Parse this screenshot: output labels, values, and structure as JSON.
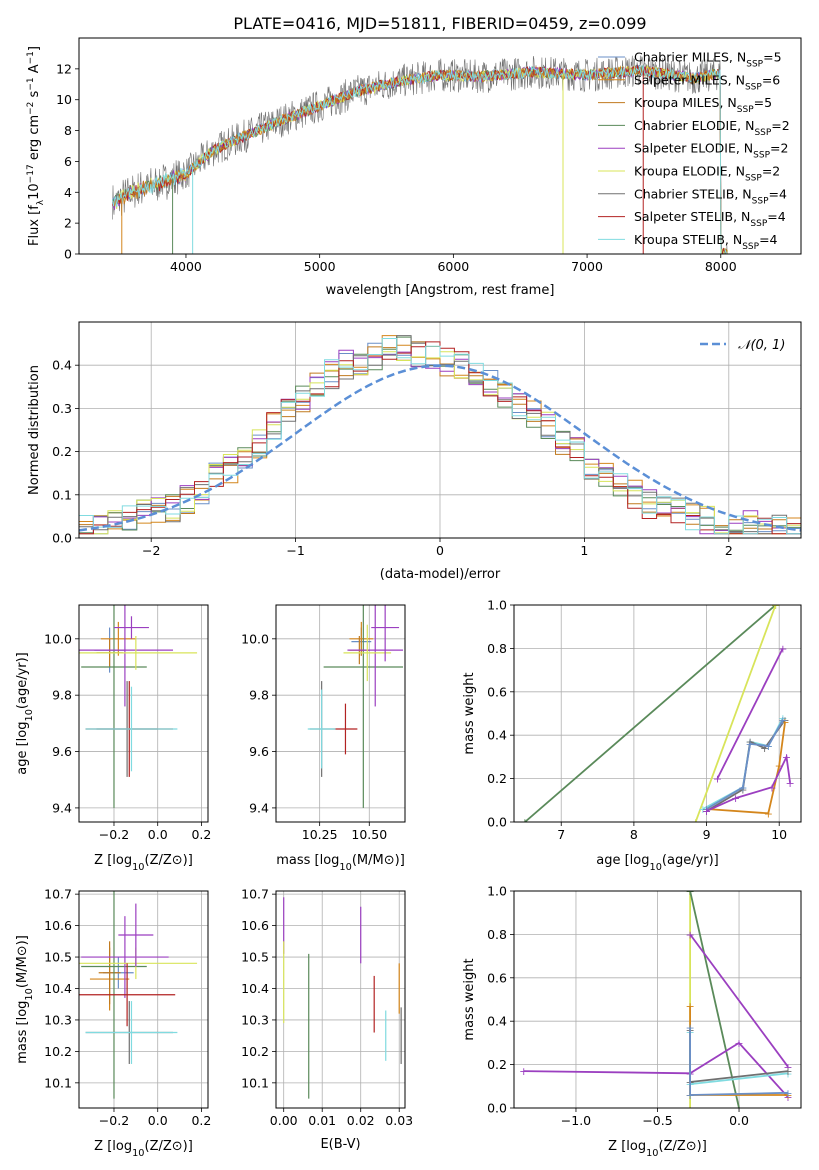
{
  "figure_title": "PLATE=0416, MJD=51811, FIBERID=0459, z=0.099",
  "models": [
    {
      "name": "Chabrier MILES",
      "nssp": "5",
      "color": "#6a8fc7"
    },
    {
      "name": "Salpeter MILES",
      "nssp": "6",
      "color": "#d4861c"
    },
    {
      "name": "Kroupa MILES",
      "nssp": "5",
      "color": "#c17a1f"
    },
    {
      "name": "Chabrier ELODIE",
      "nssp": "2",
      "color": "#5a8a5a"
    },
    {
      "name": "Salpeter ELODIE",
      "nssp": "2",
      "color": "#9b3fc0"
    },
    {
      "name": "Kroupa ELODIE",
      "nssp": "2",
      "color": "#d8e45a"
    },
    {
      "name": "Chabrier STELIB",
      "nssp": "4",
      "color": "#707070"
    },
    {
      "name": "Salpeter STELIB",
      "nssp": "4",
      "color": "#b22222"
    },
    {
      "name": "Kroupa STELIB",
      "nssp": "4",
      "color": "#80dbe0"
    }
  ],
  "nssp_label": "N",
  "nssp_sub": "SSP",
  "chart_data": [
    {
      "id": "spectrum",
      "type": "line",
      "xlabel": "wavelength [Angstrom, rest frame]",
      "ylabel_text": "Flux [f",
      "ylabel_tail": "10",
      "ylabel_rest": " erg cm",
      "xlim": [
        3200,
        8600
      ],
      "ylim": [
        0,
        14
      ],
      "xticks": [
        4000,
        5000,
        6000,
        7000,
        8000
      ],
      "yticks": [
        0,
        2,
        4,
        6,
        8,
        10,
        12
      ],
      "series": [
        {
          "x": [
            3450,
            3600,
            3800,
            4000,
            4200,
            4400,
            4700,
            5000,
            5300,
            5600,
            5900,
            6200,
            6600,
            7000,
            7400,
            7800,
            8000
          ],
          "y": [
            3.3,
            4.0,
            4.6,
            5.2,
            6.7,
            7.5,
            8.6,
            9.6,
            10.6,
            11.2,
            11.6,
            11.5,
            11.8,
            11.6,
            11.9,
            11.4,
            11.7
          ]
        }
      ]
    },
    {
      "id": "residuals",
      "type": "bar",
      "xlabel": "(data-model)/error",
      "ylabel": "Normed distribution",
      "legend": "𝒩(0, 1)",
      "xlim": [
        -2.5,
        2.5
      ],
      "ylim": [
        0,
        0.5
      ],
      "xticks": [
        -2,
        -1,
        0,
        1,
        2
      ],
      "yticks": [
        0.0,
        0.1,
        0.2,
        0.3,
        0.4
      ],
      "bin_width": 0.1,
      "values": [
        0.02,
        0.03,
        0.03,
        0.04,
        0.06,
        0.06,
        0.07,
        0.09,
        0.11,
        0.14,
        0.16,
        0.19,
        0.22,
        0.26,
        0.29,
        0.32,
        0.35,
        0.38,
        0.4,
        0.41,
        0.42,
        0.44,
        0.44,
        0.43,
        0.42,
        0.41,
        0.4,
        0.38,
        0.36,
        0.33,
        0.31,
        0.29,
        0.26,
        0.22,
        0.2,
        0.17,
        0.15,
        0.12,
        0.1,
        0.08,
        0.07,
        0.06,
        0.05,
        0.04,
        0.03,
        0.03,
        0.03,
        0.02,
        0.02,
        0.02
      ]
    },
    {
      "id": "age_vs_Z",
      "type": "scatter",
      "xlabel": "Z [log",
      "ylabel": "age  [log",
      "xlim": [
        -0.36,
        0.23
      ],
      "ylim": [
        9.35,
        10.12
      ],
      "xticks": [
        -0.2,
        0.0,
        0.2
      ],
      "yticks": [
        9.4,
        9.6,
        9.8,
        10.0
      ],
      "points": [
        {
          "x": -0.22,
          "y": 9.96,
          "ex": 0.07,
          "ey": 0.08,
          "model": 0
        },
        {
          "x": -0.18,
          "y": 10.0,
          "ex": 0.08,
          "ey": 0.06,
          "model": 1
        },
        {
          "x": -0.22,
          "y": 9.95,
          "ex": 0.06,
          "ey": 0.05,
          "model": 2
        },
        {
          "x": -0.2,
          "y": 9.9,
          "ex": 0.15,
          "ey": 0.5,
          "model": 3
        },
        {
          "x": -0.15,
          "y": 9.96,
          "ex": 0.22,
          "ey": 0.2,
          "model": 4
        },
        {
          "x": -0.1,
          "y": 9.95,
          "ex": 0.28,
          "ey": 0.06,
          "model": 5
        },
        {
          "x": -0.14,
          "y": 9.68,
          "ex": 0.14,
          "ey": 0.17,
          "model": 6
        },
        {
          "x": -0.13,
          "y": 9.68,
          "ex": 0.2,
          "ey": 0.17,
          "model": 7
        },
        {
          "x": -0.12,
          "y": 9.68,
          "ex": 0.21,
          "ey": 0.15,
          "model": 8
        },
        {
          "x": -0.12,
          "y": 10.04,
          "ex": 0.08,
          "ey": 0.04,
          "model": 4
        }
      ]
    },
    {
      "id": "age_vs_mass",
      "type": "scatter",
      "xlabel": "mass [log",
      "ylabel": "",
      "xlim": [
        10.03,
        10.68
      ],
      "ylim": [
        9.35,
        10.12
      ],
      "xticks": [
        10.25,
        10.5
      ],
      "yticks": [
        9.4,
        9.6,
        9.8,
        10.0
      ],
      "points": [
        {
          "x": 10.46,
          "y": 9.99,
          "ex": 0.05,
          "ey": 0.05,
          "model": 0
        },
        {
          "x": 10.46,
          "y": 10.0,
          "ex": 0.06,
          "ey": 0.06,
          "model": 1
        },
        {
          "x": 10.45,
          "y": 9.96,
          "ex": 0.05,
          "ey": 0.05,
          "model": 2
        },
        {
          "x": 10.47,
          "y": 9.9,
          "ex": 0.2,
          "ey": 0.5,
          "model": 3
        },
        {
          "x": 10.53,
          "y": 9.96,
          "ex": 0.14,
          "ey": 0.2,
          "model": 4
        },
        {
          "x": 10.49,
          "y": 9.95,
          "ex": 0.12,
          "ey": 0.1,
          "model": 5
        },
        {
          "x": 10.26,
          "y": 9.68,
          "ex": 0.06,
          "ey": 0.17,
          "model": 6
        },
        {
          "x": 10.38,
          "y": 9.68,
          "ex": 0.06,
          "ey": 0.09,
          "model": 7
        },
        {
          "x": 10.26,
          "y": 9.68,
          "ex": 0.07,
          "ey": 0.14,
          "model": 8
        },
        {
          "x": 10.58,
          "y": 10.04,
          "ex": 0.07,
          "ey": 0.12,
          "model": 4
        }
      ]
    },
    {
      "id": "weight_vs_age",
      "type": "line",
      "xlabel": "age  [log",
      "ylabel": "mass weight",
      "xlim": [
        6.35,
        10.3
      ],
      "ylim": [
        0,
        1.0
      ],
      "xticks": [
        7,
        8,
        9,
        10
      ],
      "yticks": [
        0.0,
        0.2,
        0.4,
        0.6,
        0.8,
        1.0
      ],
      "series": [
        {
          "model": 3,
          "x": [
            6.5,
            9.95
          ],
          "y": [
            0.0,
            1.0
          ]
        },
        {
          "model": 5,
          "x": [
            8.85,
            9.95
          ],
          "y": [
            0.0,
            1.0
          ]
        },
        {
          "model": 4,
          "x": [
            9.15,
            10.05
          ],
          "y": [
            0.2,
            0.8
          ]
        },
        {
          "model": 8,
          "x": [
            8.95,
            9.5,
            9.6,
            9.85,
            10.05
          ],
          "y": [
            0.06,
            0.16,
            0.37,
            0.35,
            0.48
          ]
        },
        {
          "model": 6,
          "x": [
            9.0,
            9.5,
            9.6,
            9.8,
            10.08
          ],
          "y": [
            0.05,
            0.15,
            0.37,
            0.34,
            0.47
          ]
        },
        {
          "model": 1,
          "x": [
            9.0,
            9.85,
            10.0,
            10.08
          ],
          "y": [
            0.06,
            0.04,
            0.26,
            0.46
          ]
        },
        {
          "model": 0,
          "x": [
            9.0,
            9.5,
            9.6,
            9.85,
            10.05
          ],
          "y": [
            0.06,
            0.16,
            0.36,
            0.35,
            0.47
          ]
        },
        {
          "model": 4,
          "x": [
            9.0,
            9.4,
            9.9,
            10.1,
            10.15
          ],
          "y": [
            0.05,
            0.11,
            0.16,
            0.3,
            0.18
          ]
        }
      ]
    },
    {
      "id": "mass_vs_Z",
      "type": "scatter",
      "xlabel": "Z [log",
      "ylabel": "mass [log",
      "xlim": [
        -0.36,
        0.23
      ],
      "ylim": [
        10.02,
        10.71
      ],
      "xticks": [
        -0.2,
        0.0,
        0.2
      ],
      "yticks": [
        10.1,
        10.2,
        10.3,
        10.4,
        10.5,
        10.6,
        10.7
      ],
      "points": [
        {
          "x": -0.18,
          "y": 10.45,
          "ex": 0.07,
          "ey": 0.05,
          "model": 0
        },
        {
          "x": -0.22,
          "y": 10.43,
          "ex": 0.09,
          "ey": 0.1,
          "model": 1
        },
        {
          "x": -0.22,
          "y": 10.45,
          "ex": 0.05,
          "ey": 0.1,
          "model": 2
        },
        {
          "x": -0.2,
          "y": 10.47,
          "ex": 0.15,
          "ey": 0.42,
          "model": 3
        },
        {
          "x": -0.15,
          "y": 10.5,
          "ex": 0.2,
          "ey": 0.13,
          "model": 4
        },
        {
          "x": -0.1,
          "y": 10.48,
          "ex": 0.28,
          "ey": 0.05,
          "model": 5
        },
        {
          "x": -0.13,
          "y": 10.26,
          "ex": 0.2,
          "ey": 0.1,
          "model": 6
        },
        {
          "x": -0.14,
          "y": 10.38,
          "ex": 0.22,
          "ey": 0.1,
          "model": 7
        },
        {
          "x": -0.12,
          "y": 10.26,
          "ex": 0.21,
          "ey": 0.1,
          "model": 8
        },
        {
          "x": -0.1,
          "y": 10.57,
          "ex": 0.08,
          "ey": 0.1,
          "model": 4
        }
      ]
    },
    {
      "id": "mass_vs_ebv",
      "type": "scatter",
      "xlabel": "E(B-V)",
      "ylabel": "",
      "xlim": [
        -0.002,
        0.0315
      ],
      "ylim": [
        10.02,
        10.71
      ],
      "xticks": [
        0.0,
        0.01,
        0.02,
        0.03
      ],
      "yticks": [
        10.1,
        10.2,
        10.3,
        10.4,
        10.5,
        10.6,
        10.7
      ],
      "points": [
        {
          "x": 0.0,
          "y": 10.6,
          "ex": 0.0,
          "ey": 0.09,
          "model": 4
        },
        {
          "x": 0.0,
          "y": 10.42,
          "ex": 0.0,
          "ey": 0.13,
          "model": 5
        },
        {
          "x": 0.0065,
          "y": 10.28,
          "ex": 0.0,
          "ey": 0.23,
          "model": 3
        },
        {
          "x": 0.02,
          "y": 10.57,
          "ex": 0.0,
          "ey": 0.09,
          "model": 4
        },
        {
          "x": 0.0235,
          "y": 10.35,
          "ex": 0.0,
          "ey": 0.09,
          "model": 7
        },
        {
          "x": 0.0265,
          "y": 10.25,
          "ex": 0.0,
          "ey": 0.08,
          "model": 8
        },
        {
          "x": 0.03,
          "y": 10.4,
          "ex": 0.0,
          "ey": 0.08,
          "model": 1
        },
        {
          "x": 0.0305,
          "y": 10.25,
          "ex": 0.0,
          "ey": 0.09,
          "model": 6
        }
      ]
    },
    {
      "id": "weight_vs_Z",
      "type": "line",
      "xlabel": "Z [log",
      "ylabel": "mass weight",
      "xlim": [
        -1.38,
        0.38
      ],
      "ylim": [
        0,
        1.0
      ],
      "xticks": [
        -1.0,
        -0.5,
        0.0
      ],
      "yticks": [
        0.0,
        0.2,
        0.4,
        0.6,
        0.8,
        1.0
      ],
      "series": [
        {
          "model": 5,
          "x": [
            -0.3,
            -0.3
          ],
          "y": [
            0.0,
            1.0
          ]
        },
        {
          "model": 3,
          "x": [
            -0.3,
            0.0
          ],
          "y": [
            1.0,
            0.0
          ]
        },
        {
          "model": 4,
          "x": [
            -0.3,
            0.3
          ],
          "y": [
            0.8,
            0.19
          ]
        },
        {
          "model": 4,
          "x": [
            -1.32,
            -0.3,
            0.0,
            0.3
          ],
          "y": [
            0.17,
            0.16,
            0.3,
            0.05
          ]
        },
        {
          "model": 1,
          "x": [
            -0.3,
            -0.3,
            0.3
          ],
          "y": [
            0.47,
            0.06,
            0.06
          ]
        },
        {
          "model": 8,
          "x": [
            -0.3,
            -0.3,
            0.3
          ],
          "y": [
            0.35,
            0.11,
            0.16
          ]
        },
        {
          "model": 6,
          "x": [
            -0.3,
            -0.3,
            0.3
          ],
          "y": [
            0.36,
            0.12,
            0.17
          ]
        },
        {
          "model": 0,
          "x": [
            -0.3,
            -0.3,
            0.3
          ],
          "y": [
            0.37,
            0.06,
            0.07
          ]
        }
      ]
    }
  ]
}
